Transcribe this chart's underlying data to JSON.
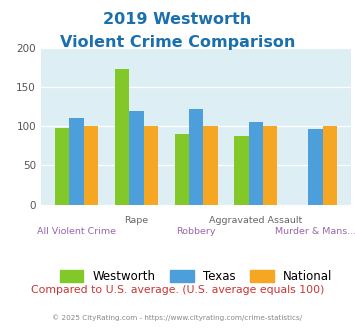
{
  "title_line1": "2019 Westworth",
  "title_line2": "Violent Crime Comparison",
  "title_color": "#1a6faf",
  "categories": [
    "All Violent Crime",
    "Rape",
    "Robbery",
    "Aggravated Assault",
    "Murder & Mans..."
  ],
  "westworth": [
    98,
    173,
    90,
    87,
    0
  ],
  "texas": [
    110,
    120,
    122,
    106,
    97
  ],
  "national": [
    100,
    100,
    100,
    100,
    100
  ],
  "westworth_color": "#82c828",
  "texas_color": "#4d9fdb",
  "national_color": "#f5a623",
  "ylim": [
    0,
    200
  ],
  "yticks": [
    0,
    50,
    100,
    150,
    200
  ],
  "plot_bg_color": "#ddeef5",
  "footer_text": "Compared to U.S. average. (U.S. average equals 100)",
  "footer_color": "#cc3333",
  "copyright_text": "© 2025 CityRating.com - https://www.cityrating.com/crime-statistics/",
  "copyright_color": "#888888",
  "bar_width": 0.24,
  "tick_labels_upper": {
    "1": "Rape",
    "3": "Aggravated Assault"
  },
  "tick_labels_lower": {
    "0": "All Violent Crime",
    "2": "Robbery",
    "4": "Murder & Mans..."
  }
}
